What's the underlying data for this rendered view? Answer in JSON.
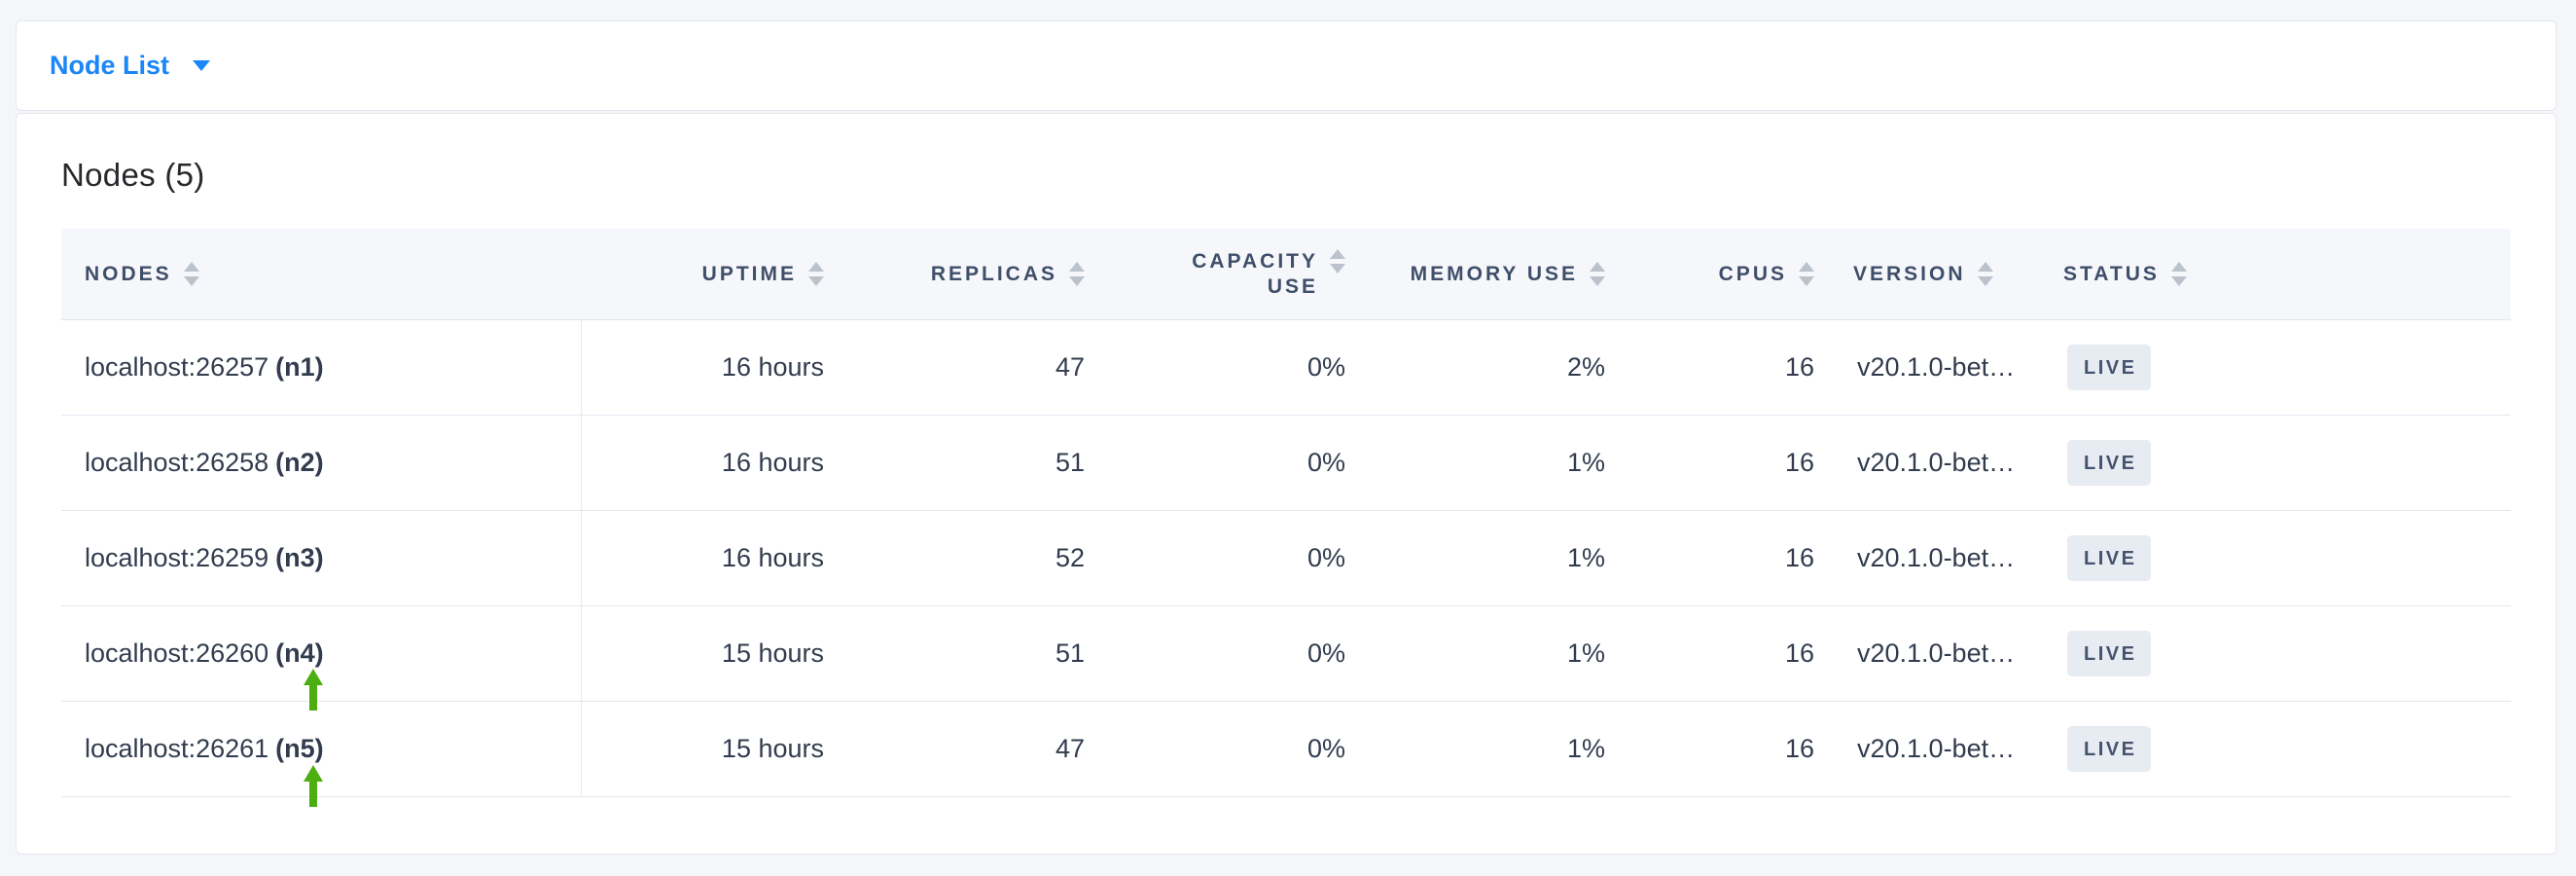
{
  "view_selector": {
    "label": "Node List"
  },
  "panel": {
    "heading": "Nodes (5)"
  },
  "table": {
    "columns": {
      "nodes": "NODES",
      "uptime": "UPTIME",
      "replicas": "REPLICAS",
      "capacity_use": "CAPACITY USE",
      "memory_use": "MEMORY USE",
      "cpus": "CPUS",
      "version": "VERSION",
      "status": "STATUS"
    },
    "rows": [
      {
        "address": "localhost:26257",
        "name": "(n1)",
        "uptime": "16 hours",
        "replicas": "47",
        "capacity_use": "0%",
        "memory_use": "2%",
        "cpus": "16",
        "version": "v20.1.0-bet…",
        "status": "LIVE"
      },
      {
        "address": "localhost:26258",
        "name": "(n2)",
        "uptime": "16 hours",
        "replicas": "51",
        "capacity_use": "0%",
        "memory_use": "1%",
        "cpus": "16",
        "version": "v20.1.0-bet…",
        "status": "LIVE"
      },
      {
        "address": "localhost:26259",
        "name": "(n3)",
        "uptime": "16 hours",
        "replicas": "52",
        "capacity_use": "0%",
        "memory_use": "1%",
        "cpus": "16",
        "version": "v20.1.0-bet…",
        "status": "LIVE"
      },
      {
        "address": "localhost:26260",
        "name": "(n4)",
        "uptime": "15 hours",
        "replicas": "51",
        "capacity_use": "0%",
        "memory_use": "1%",
        "cpus": "16",
        "version": "v20.1.0-bet…",
        "status": "LIVE"
      },
      {
        "address": "localhost:26261",
        "name": "(n5)",
        "uptime": "15 hours",
        "replicas": "47",
        "capacity_use": "0%",
        "memory_use": "1%",
        "cpus": "16",
        "version": "v20.1.0-bet…",
        "status": "LIVE"
      }
    ]
  },
  "colors": {
    "accent_blue": "#1b86f7",
    "annotation_green": "#4cae10",
    "badge_bg": "#e7ebf2",
    "badge_text": "#44536e",
    "header_text": "#3f4e69"
  }
}
